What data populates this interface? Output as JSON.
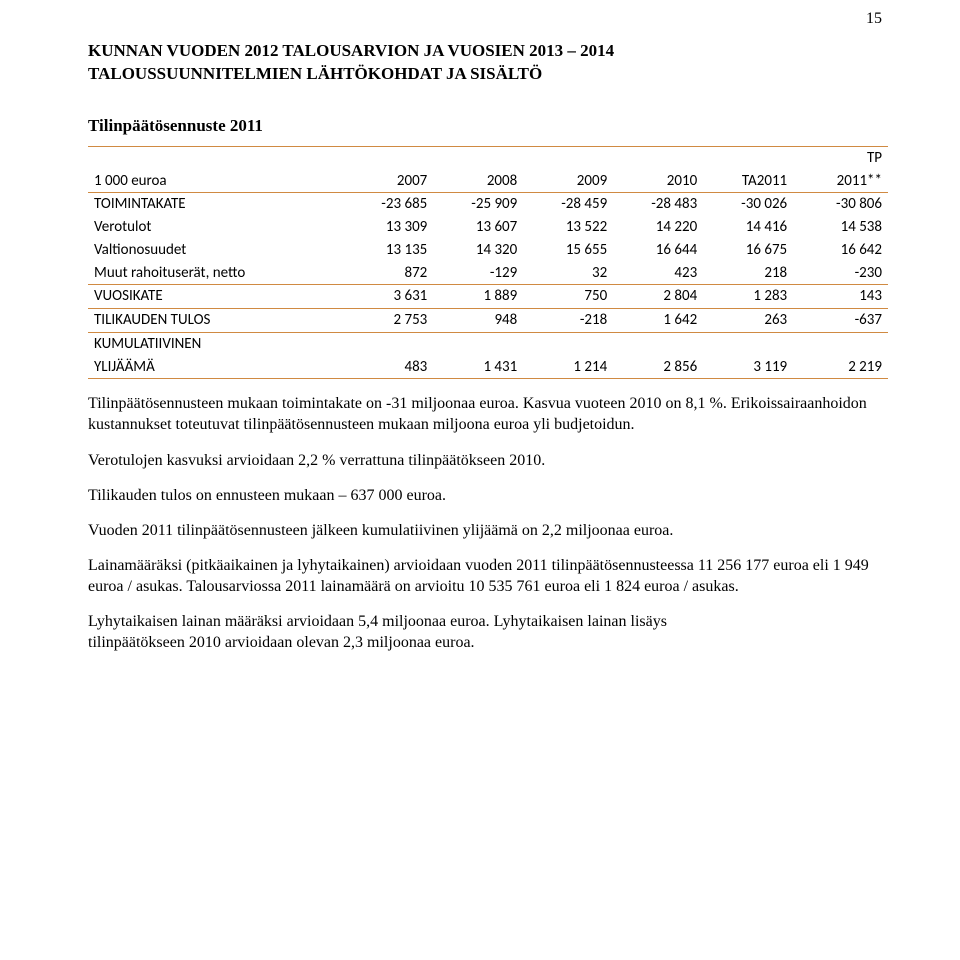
{
  "page": {
    "number": "15"
  },
  "title": {
    "line1": "KUNNAN VUODEN 2012 TALOUSARVION JA VUOSIEN 2013 – 2014",
    "line2": "TALOUSSUUNNITELMIEN LÄHTÖKOHDAT JA SISÄLTÖ"
  },
  "section": {
    "heading": "Tilinpäätösennuste 2011"
  },
  "table": {
    "type": "table",
    "border_color": "#d08a42",
    "font_family": "Calibri",
    "font_size_pt": 11,
    "unit_label": "1 000 euroa",
    "tp_label": "TP",
    "columns": [
      "2007",
      "2008",
      "2009",
      "2010",
      "TA2011",
      "2011**"
    ],
    "rows": [
      {
        "label": "TOIMINTAKATE",
        "values": [
          "-23 685",
          "-25 909",
          "-28 459",
          "-28 483",
          "-30 026",
          "-30 806"
        ]
      },
      {
        "label": "Verotulot",
        "values": [
          "13 309",
          "13 607",
          "13 522",
          "14 220",
          "14 416",
          "14 538"
        ]
      },
      {
        "label": "Valtionosuudet",
        "values": [
          "13 135",
          "14 320",
          "15 655",
          "16 644",
          "16 675",
          "16 642"
        ]
      },
      {
        "label": "Muut rahoituserät, netto",
        "values": [
          "872",
          "-129",
          "32",
          "423",
          "218",
          "-230"
        ]
      },
      {
        "label": "VUOSIKATE",
        "values": [
          "3 631",
          "1 889",
          "750",
          "2 804",
          "1 283",
          "143"
        ]
      },
      {
        "label": "TILIKAUDEN TULOS",
        "values": [
          "2 753",
          "948",
          "-218",
          "1 642",
          "263",
          "-637"
        ]
      },
      {
        "label": "KUMULATIIVINEN",
        "values": []
      },
      {
        "label": "YLIJÄÄMÄ",
        "values": [
          "483",
          "1 431",
          "1 214",
          "2 856",
          "3 119",
          "2 219"
        ]
      }
    ]
  },
  "paragraphs": [
    "Tilinpäätösennusteen mukaan toimintakate on -31 miljoonaa euroa. Kasvua vuoteen 2010 on 8,1 %. Erikoissairaanhoidon kustannukset toteutuvat tilinpäätösennusteen mukaan miljoona euroa yli budjetoidun.",
    "Verotulojen kasvuksi arvioidaan 2,2 % verrattuna tilinpäätökseen 2010.",
    "Tilikauden tulos on ennusteen mukaan – 637 000 euroa.",
    "Vuoden 2011 tilinpäätösennusteen jälkeen kumulatiivinen ylijäämä on 2,2 miljoonaa euroa.",
    "Lainamääräksi (pitkäaikainen ja lyhytaikainen) arvioidaan vuoden 2011 tilinpäätösennusteessa 11 256 177 euroa eli 1 949 euroa / asukas. Talousarviossa 2011 lainamäärä on arvioitu 10 535 761 euroa eli 1 824 euroa / asukas.",
    "Lyhytaikaisen lainan määräksi arvioidaan 5,4 miljoonaa euroa. Lyhytaikaisen lainan lisäys",
    "tilinpäätökseen 2010 arvioidaan olevan 2,3 miljoonaa euroa."
  ],
  "colors": {
    "text": "#000000",
    "background": "#ffffff",
    "table_border": "#d08a42"
  }
}
